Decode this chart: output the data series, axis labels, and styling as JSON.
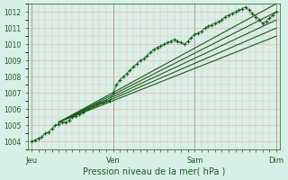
{
  "title": "",
  "xlabel": "Pression niveau de la mer( hPa )",
  "bg_color": "#d8f0e8",
  "grid_color": "#f0b0b0",
  "line_color": "#1a5c1a",
  "dot_color": "#1a5c1a",
  "ylim": [
    1003.5,
    1012.5
  ],
  "yticks": [
    1004,
    1005,
    1006,
    1007,
    1008,
    1009,
    1010,
    1011,
    1012
  ],
  "day_labels": [
    "Jeu",
    "Ven",
    "Sam",
    "Dim"
  ],
  "day_positions": [
    0,
    48,
    96,
    144
  ],
  "total_hours": 144,
  "observed_x": [
    0,
    2,
    4,
    6,
    8,
    10,
    12,
    14,
    16,
    18,
    20,
    22,
    24,
    26,
    28,
    30,
    32,
    34,
    36,
    38,
    40,
    42,
    44,
    46,
    48,
    50,
    52,
    54,
    56,
    58,
    60,
    62,
    64,
    66,
    68,
    70,
    72,
    74,
    76,
    78,
    80,
    82,
    84,
    86,
    88,
    90,
    92,
    94,
    96,
    98,
    100,
    102,
    104,
    106,
    108,
    110,
    112,
    114,
    116,
    118,
    120,
    122,
    124,
    126,
    128,
    130,
    132,
    134,
    136,
    138,
    140,
    142,
    144
  ],
  "observed_y": [
    1004.0,
    1004.1,
    1004.2,
    1004.3,
    1004.5,
    1004.6,
    1004.8,
    1005.0,
    1005.1,
    1005.2,
    1005.2,
    1005.3,
    1005.5,
    1005.6,
    1005.7,
    1005.8,
    1006.0,
    1006.1,
    1006.2,
    1006.3,
    1006.4,
    1006.4,
    1006.5,
    1006.5,
    1007.0,
    1007.5,
    1007.8,
    1008.0,
    1008.2,
    1008.4,
    1008.6,
    1008.8,
    1009.0,
    1009.1,
    1009.3,
    1009.5,
    1009.7,
    1009.8,
    1009.9,
    1010.0,
    1010.1,
    1010.2,
    1010.3,
    1010.2,
    1010.1,
    1010.0,
    1010.2,
    1010.4,
    1010.6,
    1010.7,
    1010.8,
    1011.0,
    1011.1,
    1011.2,
    1011.3,
    1011.4,
    1011.5,
    1011.7,
    1011.8,
    1011.9,
    1012.0,
    1012.1,
    1012.2,
    1012.3,
    1012.1,
    1011.9,
    1011.7,
    1011.5,
    1011.3,
    1011.4,
    1011.6,
    1011.8,
    1012.0
  ],
  "forecast_lines": [
    {
      "x": [
        16,
        144
      ],
      "y": [
        1005.2,
        1012.0
      ]
    },
    {
      "x": [
        16,
        144
      ],
      "y": [
        1005.2,
        1011.5
      ]
    },
    {
      "x": [
        16,
        144
      ],
      "y": [
        1005.2,
        1011.0
      ]
    },
    {
      "x": [
        16,
        144
      ],
      "y": [
        1005.2,
        1010.5
      ]
    },
    {
      "x": [
        16,
        144
      ],
      "y": [
        1005.2,
        1012.5
      ]
    }
  ]
}
